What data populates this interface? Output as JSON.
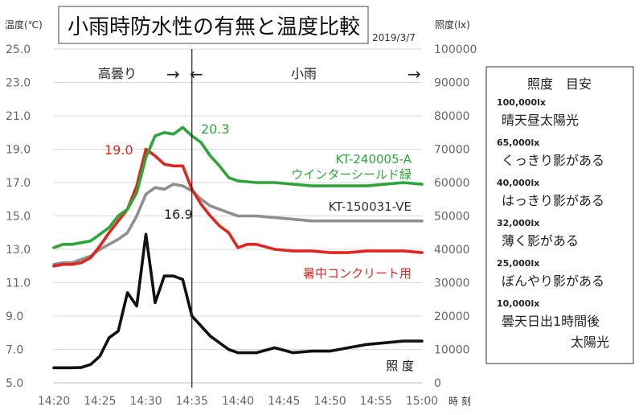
{
  "chart_data": {
    "type": "line",
    "title": "小雨時防水性の有無と温度比較",
    "date": "2019/3/7",
    "ylabel_left": "温度(℃)",
    "ylabel_right": "照度(lx)",
    "xlabel": "時 刻",
    "x_ticks": [
      "14:20",
      "14:25",
      "14:30",
      "14:35",
      "14:40",
      "14:45",
      "14:50",
      "14:55",
      "15:00"
    ],
    "y_left_ticks": [
      "5.0",
      "7.0",
      "9.0",
      "11.0",
      "13.0",
      "15.0",
      "17.0",
      "19.0",
      "21.0",
      "23.0",
      "25.0"
    ],
    "y_right_ticks": [
      "0",
      "10000",
      "20000",
      "30000",
      "40000",
      "50000",
      "60000",
      "70000",
      "80000",
      "90000",
      "100000"
    ],
    "ylim_left": [
      5,
      25
    ],
    "ylim_right": [
      0,
      100000
    ],
    "x_minutes_range": [
      0,
      40
    ],
    "grid": "horizontal",
    "vline_at": "14:35",
    "periods": [
      {
        "label": "高曇り",
        "arrow": "→"
      },
      {
        "label": "小雨",
        "arrow_left": "←",
        "arrow_right": "→"
      }
    ],
    "annotations": [
      {
        "text": "20.3",
        "color": "#2da639"
      },
      {
        "text": "19.0",
        "color": "#e0261f"
      },
      {
        "text": "16.9",
        "color": "#222222"
      }
    ],
    "series": [
      {
        "name": "KT-240005-A ウインターシールド緑",
        "label_lines": [
          "KT-240005-A",
          "ウインターシールド緑"
        ],
        "axis": "left",
        "color": "#2da639",
        "x": [
          "14:20",
          "14:21",
          "14:22",
          "14:23",
          "14:24",
          "14:25",
          "14:26",
          "14:27",
          "14:28",
          "14:29",
          "14:30",
          "14:31",
          "14:32",
          "14:33",
          "14:34",
          "14:35",
          "14:36",
          "14:37",
          "14:38",
          "14:39",
          "14:40",
          "14:42",
          "14:44",
          "14:46",
          "14:48",
          "14:50",
          "14:52",
          "14:54",
          "14:56",
          "14:58",
          "15:00"
        ],
        "values": [
          13.1,
          13.3,
          13.3,
          13.4,
          13.5,
          13.9,
          14.3,
          15.0,
          15.4,
          16.4,
          18.5,
          19.8,
          20.0,
          19.9,
          20.3,
          19.8,
          19.4,
          18.6,
          18.0,
          17.3,
          17.1,
          17.0,
          17.0,
          16.9,
          16.8,
          16.8,
          16.8,
          16.8,
          16.9,
          17.0,
          16.9
        ]
      },
      {
        "name": "KT-150031-VE",
        "label_lines": [
          "KT-150031-VE"
        ],
        "axis": "left",
        "color": "#8f8f8f",
        "x": [
          "14:20",
          "14:21",
          "14:22",
          "14:23",
          "14:24",
          "14:25",
          "14:26",
          "14:27",
          "14:28",
          "14:29",
          "14:30",
          "14:31",
          "14:32",
          "14:33",
          "14:34",
          "14:35",
          "14:36",
          "14:37",
          "14:38",
          "14:39",
          "14:40",
          "14:42",
          "14:44",
          "14:46",
          "14:48",
          "14:50",
          "14:52",
          "14:54",
          "14:56",
          "14:58",
          "15:00"
        ],
        "values": [
          12.1,
          12.2,
          12.2,
          12.4,
          12.6,
          13.0,
          13.3,
          13.6,
          14.0,
          15.0,
          16.3,
          16.7,
          16.6,
          16.9,
          16.8,
          16.5,
          16.0,
          15.6,
          15.4,
          15.2,
          15.0,
          15.0,
          14.9,
          14.8,
          14.7,
          14.7,
          14.7,
          14.7,
          14.7,
          14.7,
          14.7
        ]
      },
      {
        "name": "暑中コンクリート用",
        "label_lines": [
          "暑中コンクリート用"
        ],
        "axis": "left",
        "color": "#e0261f",
        "x": [
          "14:20",
          "14:21",
          "14:22",
          "14:23",
          "14:24",
          "14:25",
          "14:26",
          "14:27",
          "14:28",
          "14:29",
          "14:30",
          "14:31",
          "14:32",
          "14:33",
          "14:34",
          "14:35",
          "14:36",
          "14:37",
          "14:38",
          "14:39",
          "14:40",
          "14:41",
          "14:42",
          "14:44",
          "14:46",
          "14:48",
          "14:50",
          "14:52",
          "14:54",
          "14:56",
          "14:58",
          "15:00"
        ],
        "values": [
          12.0,
          12.1,
          12.1,
          12.2,
          12.5,
          13.2,
          14.0,
          14.7,
          15.4,
          16.8,
          19.0,
          18.6,
          18.1,
          18.0,
          18.0,
          16.6,
          15.7,
          15.0,
          14.4,
          14.0,
          13.1,
          13.3,
          13.3,
          13.0,
          12.9,
          12.9,
          12.8,
          12.8,
          12.9,
          12.9,
          12.9,
          12.8
        ]
      },
      {
        "name": "照 度",
        "label_lines": [
          "照 度"
        ],
        "axis": "right",
        "color": "#111111",
        "x": [
          "14:20",
          "14:21",
          "14:22",
          "14:23",
          "14:24",
          "14:25",
          "14:26",
          "14:27",
          "14:28",
          "14:29",
          "14:30",
          "14:31",
          "14:32",
          "14:33",
          "14:34",
          "14:35",
          "14:36",
          "14:37",
          "14:38",
          "14:39",
          "14:40",
          "14:42",
          "14:44",
          "14:46",
          "14:48",
          "14:50",
          "14:52",
          "14:54",
          "14:56",
          "14:58",
          "15:00"
        ],
        "values": [
          4500,
          4500,
          4500,
          4600,
          5500,
          8000,
          13500,
          15500,
          27000,
          23000,
          44500,
          24000,
          32000,
          32000,
          31000,
          20000,
          17000,
          14000,
          12000,
          10000,
          9000,
          9000,
          10500,
          9000,
          9500,
          9500,
          10500,
          11500,
          12000,
          12500,
          12500
        ]
      }
    ]
  },
  "reference": {
    "title": "照度　目安",
    "items": [
      {
        "lx": "100,000lx",
        "desc": "晴天昼太陽光"
      },
      {
        "lx": "65,000lx",
        "desc": "くっきり影がある"
      },
      {
        "lx": "40,000lx",
        "desc": "はっきり影がある"
      },
      {
        "lx": "32,000lx",
        "desc": "薄く影がある"
      },
      {
        "lx": "25,000lx",
        "desc": "ぼんやり影がある"
      },
      {
        "lx": "10,000lx",
        "desc": "曇天日出1時間後",
        "desc2": "太陽光"
      }
    ]
  }
}
